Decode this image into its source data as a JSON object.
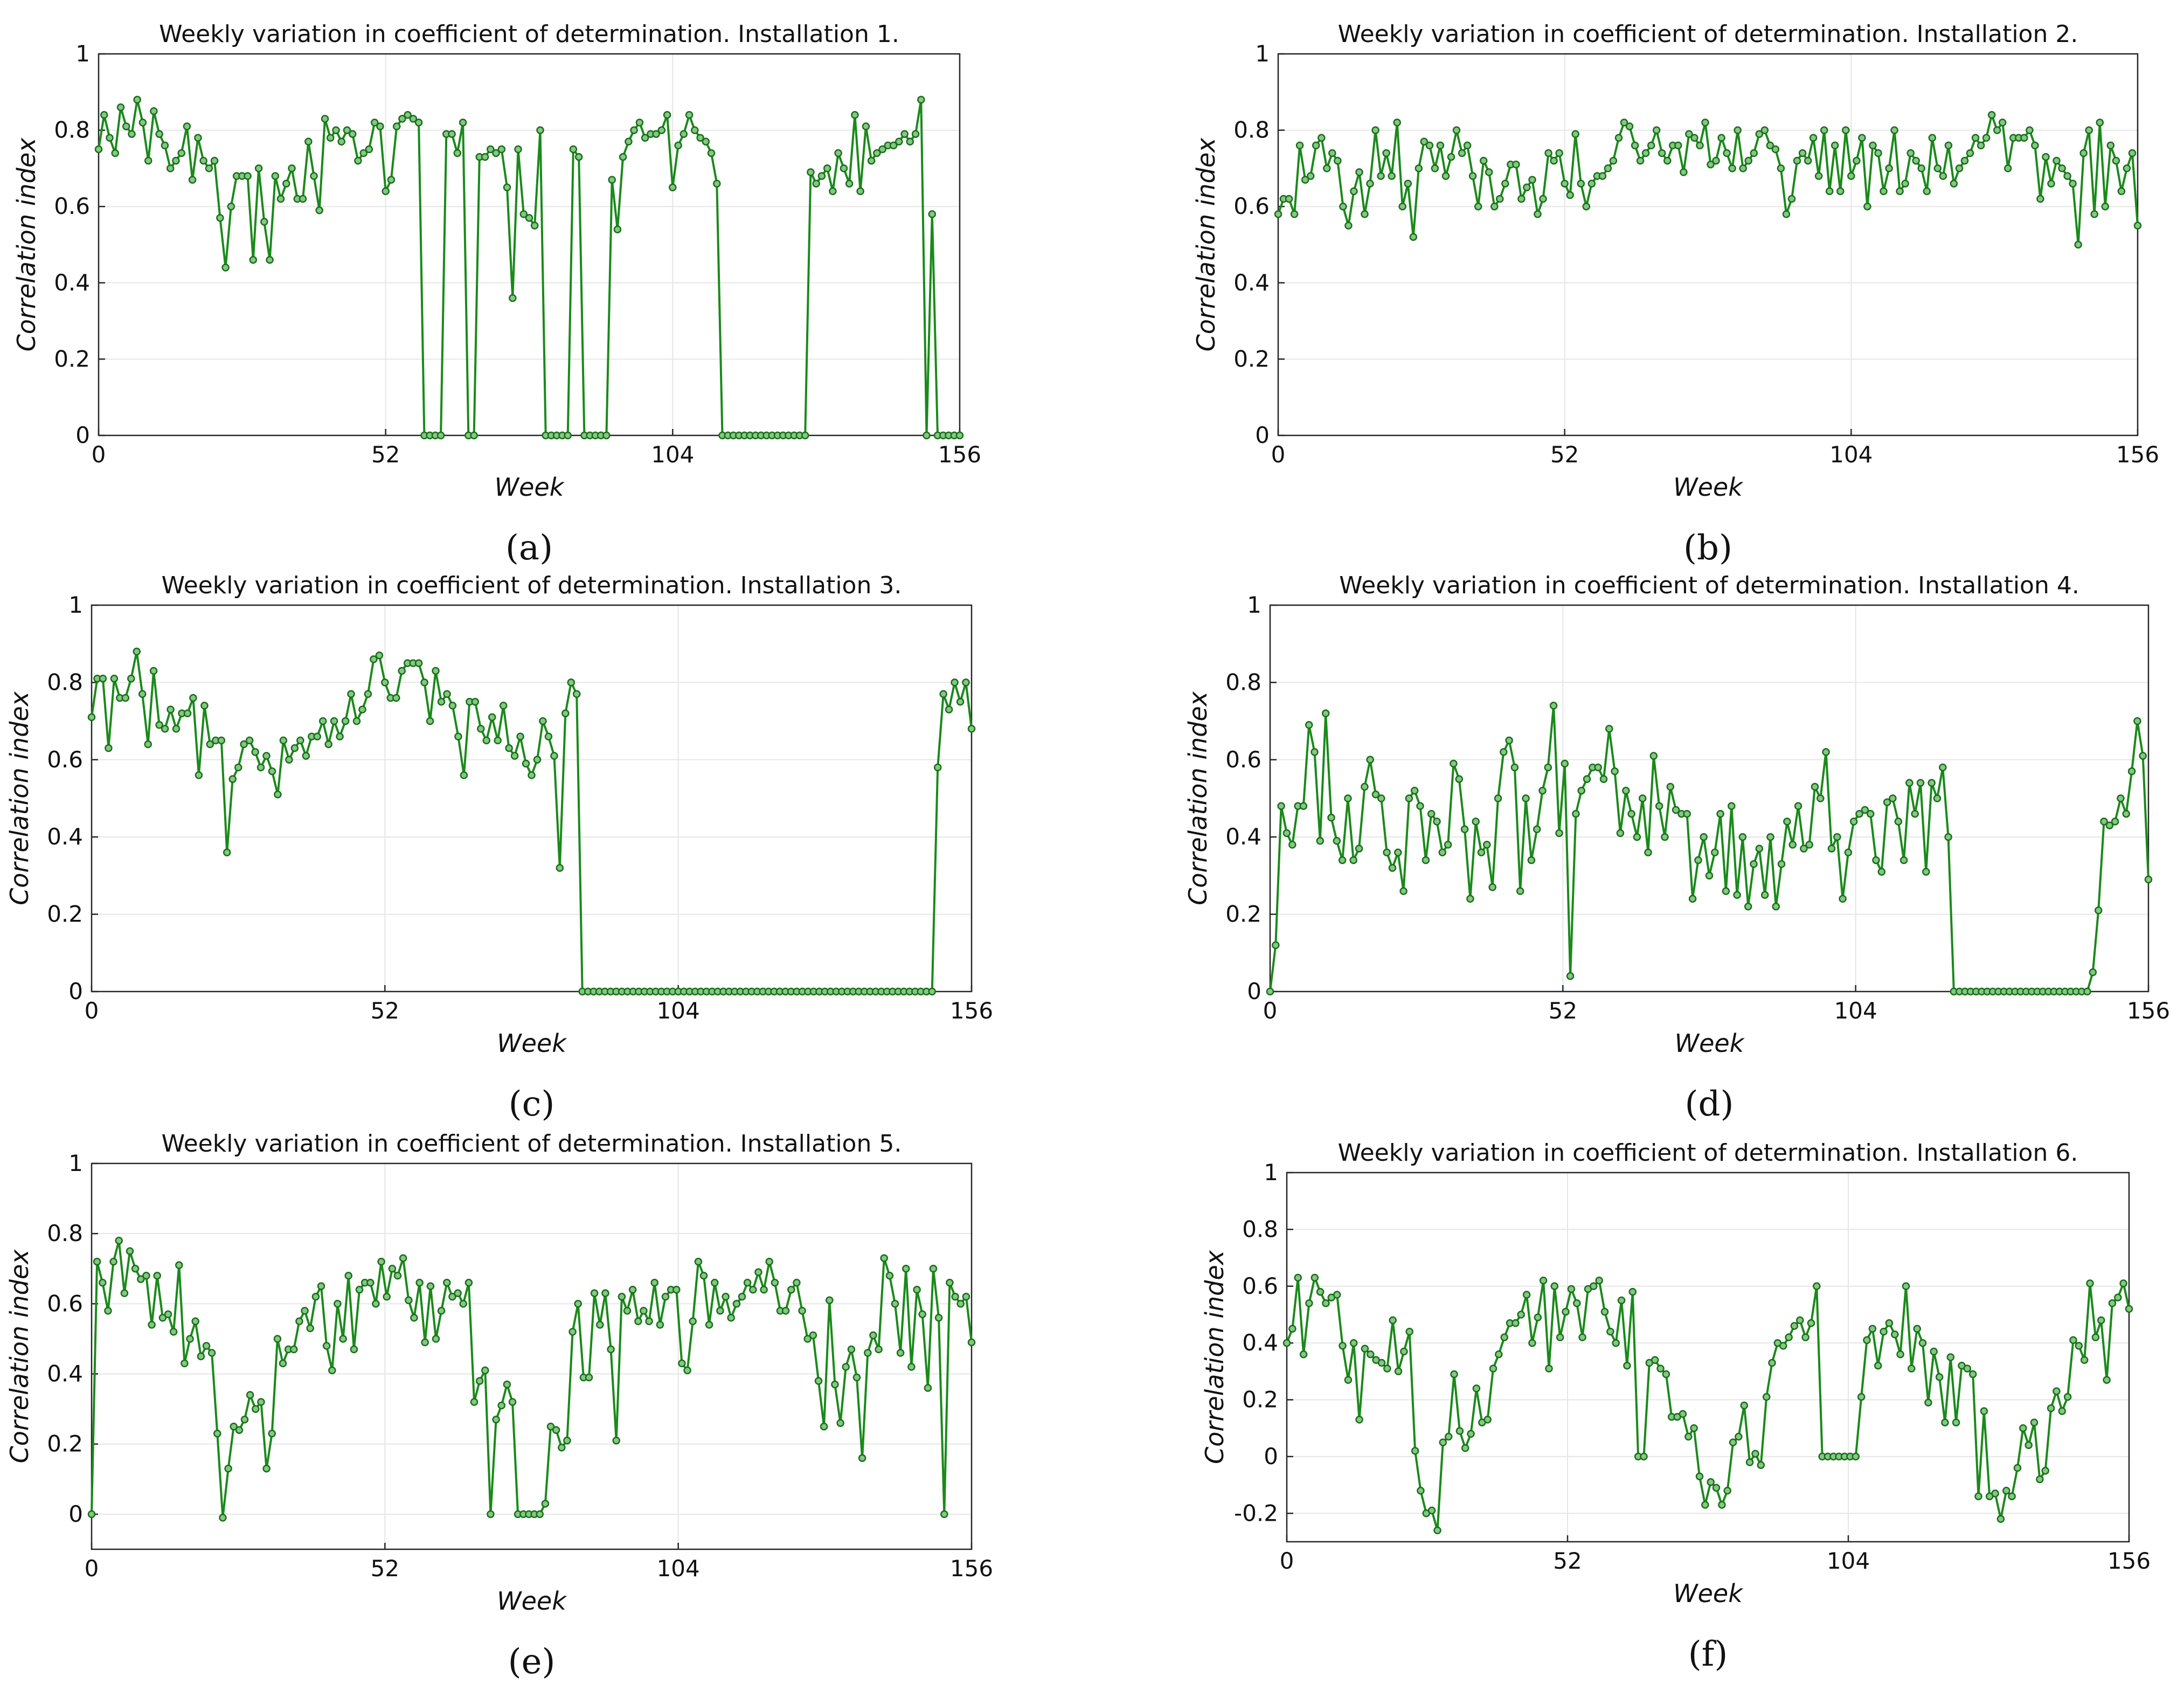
{
  "chart_data": [
    {
      "type": "line",
      "panel_label": "(a)",
      "title": "Weekly variation in coefficient of determination. Installation 1.",
      "xlabel": "Week",
      "ylabel": "Correlation index",
      "xlim": [
        0,
        156
      ],
      "ylim": [
        0,
        1
      ],
      "xticks": [
        "0",
        "52",
        "104",
        "156"
      ],
      "yticks": [
        "0",
        "0.2",
        "0.4",
        "0.6",
        "0.8",
        "1"
      ],
      "y": [
        0.75,
        0.84,
        0.78,
        0.74,
        0.86,
        0.81,
        0.79,
        0.88,
        0.82,
        0.72,
        0.85,
        0.79,
        0.76,
        0.7,
        0.72,
        0.74,
        0.81,
        0.67,
        0.78,
        0.72,
        0.7,
        0.72,
        0.57,
        0.44,
        0.6,
        0.68,
        0.68,
        0.68,
        0.46,
        0.7,
        0.56,
        0.46,
        0.68,
        0.62,
        0.66,
        0.7,
        0.62,
        0.62,
        0.77,
        0.68,
        0.59,
        0.83,
        0.78,
        0.8,
        0.77,
        0.8,
        0.79,
        0.72,
        0.74,
        0.75,
        0.82,
        0.81,
        0.64,
        0.67,
        0.81,
        0.83,
        0.84,
        0.83,
        0.82,
        0.0,
        0.0,
        0.0,
        0.0,
        0.79,
        0.79,
        0.74,
        0.82,
        0.0,
        0.0,
        0.73,
        0.73,
        0.75,
        0.74,
        0.75,
        0.65,
        0.36,
        0.75,
        0.58,
        0.57,
        0.55,
        0.8,
        0.0,
        0.0,
        0.0,
        0.0,
        0.0,
        0.75,
        0.73,
        0.0,
        0.0,
        0.0,
        0.0,
        0.0,
        0.67,
        0.54,
        0.73,
        0.77,
        0.8,
        0.82,
        0.78,
        0.79,
        0.79,
        0.8,
        0.84,
        0.65,
        0.76,
        0.79,
        0.84,
        0.8,
        0.78,
        0.77,
        0.74,
        0.66,
        0.0,
        0.0,
        0.0,
        0.0,
        0.0,
        0.0,
        0.0,
        0.0,
        0.0,
        0.0,
        0.0,
        0.0,
        0.0,
        0.0,
        0.0,
        0.0,
        0.69,
        0.66,
        0.68,
        0.7,
        0.64,
        0.74,
        0.7,
        0.66,
        0.84,
        0.64,
        0.81,
        0.72,
        0.74,
        0.75,
        0.76,
        0.76,
        0.77,
        0.79,
        0.77,
        0.79,
        0.88,
        0.0,
        0.58,
        0.0,
        0.0,
        0.0,
        0.0,
        0.0
      ]
    },
    {
      "type": "line",
      "panel_label": "(b)",
      "title": "Weekly variation in coefficient of determination. Installation 2.",
      "xlabel": "Week",
      "ylabel": "Correlation index",
      "xlim": [
        0,
        156
      ],
      "ylim": [
        0,
        1
      ],
      "xticks": [
        "0",
        "52",
        "104",
        "156"
      ],
      "yticks": [
        "0",
        "0.2",
        "0.4",
        "0.6",
        "0.8",
        "1"
      ],
      "y": [
        0.58,
        0.62,
        0.62,
        0.58,
        0.76,
        0.67,
        0.68,
        0.76,
        0.78,
        0.7,
        0.74,
        0.72,
        0.6,
        0.55,
        0.64,
        0.69,
        0.58,
        0.66,
        0.8,
        0.68,
        0.74,
        0.68,
        0.82,
        0.6,
        0.66,
        0.52,
        0.7,
        0.77,
        0.76,
        0.7,
        0.76,
        0.68,
        0.73,
        0.8,
        0.74,
        0.76,
        0.68,
        0.6,
        0.72,
        0.69,
        0.6,
        0.62,
        0.66,
        0.71,
        0.71,
        0.62,
        0.65,
        0.67,
        0.58,
        0.62,
        0.74,
        0.72,
        0.74,
        0.66,
        0.63,
        0.79,
        0.66,
        0.6,
        0.66,
        0.68,
        0.68,
        0.7,
        0.72,
        0.78,
        0.82,
        0.81,
        0.76,
        0.72,
        0.74,
        0.76,
        0.8,
        0.74,
        0.72,
        0.76,
        0.76,
        0.69,
        0.79,
        0.78,
        0.76,
        0.82,
        0.71,
        0.72,
        0.78,
        0.74,
        0.7,
        0.8,
        0.7,
        0.72,
        0.74,
        0.79,
        0.8,
        0.76,
        0.75,
        0.7,
        0.58,
        0.62,
        0.72,
        0.74,
        0.72,
        0.78,
        0.68,
        0.8,
        0.64,
        0.76,
        0.64,
        0.8,
        0.68,
        0.72,
        0.78,
        0.6,
        0.76,
        0.74,
        0.64,
        0.7,
        0.8,
        0.64,
        0.66,
        0.74,
        0.72,
        0.7,
        0.64,
        0.78,
        0.7,
        0.68,
        0.76,
        0.66,
        0.7,
        0.72,
        0.74,
        0.78,
        0.76,
        0.78,
        0.84,
        0.8,
        0.82,
        0.7,
        0.78,
        0.78,
        0.78,
        0.8,
        0.76,
        0.62,
        0.73,
        0.66,
        0.72,
        0.7,
        0.68,
        0.66,
        0.5,
        0.74,
        0.8,
        0.58,
        0.82,
        0.6,
        0.76,
        0.72,
        0.64,
        0.7,
        0.74,
        0.55
      ]
    },
    {
      "type": "line",
      "panel_label": "(c)",
      "title": "Weekly variation in coefficient of determination. Installation 3.",
      "xlabel": "Week",
      "ylabel": "Correlation index",
      "xlim": [
        0,
        156
      ],
      "ylim": [
        0,
        1
      ],
      "xticks": [
        "0",
        "52",
        "104",
        "156"
      ],
      "yticks": [
        "0",
        "0.2",
        "0.4",
        "0.6",
        "0.8",
        "1"
      ],
      "y": [
        0.71,
        0.81,
        0.81,
        0.63,
        0.81,
        0.76,
        0.76,
        0.81,
        0.88,
        0.77,
        0.64,
        0.83,
        0.69,
        0.68,
        0.73,
        0.68,
        0.72,
        0.72,
        0.76,
        0.56,
        0.74,
        0.64,
        0.65,
        0.65,
        0.36,
        0.55,
        0.58,
        0.64,
        0.65,
        0.62,
        0.58,
        0.61,
        0.57,
        0.51,
        0.65,
        0.6,
        0.63,
        0.65,
        0.61,
        0.66,
        0.66,
        0.7,
        0.64,
        0.7,
        0.66,
        0.7,
        0.77,
        0.7,
        0.73,
        0.77,
        0.86,
        0.87,
        0.8,
        0.76,
        0.76,
        0.83,
        0.85,
        0.85,
        0.85,
        0.8,
        0.7,
        0.83,
        0.75,
        0.77,
        0.74,
        0.66,
        0.56,
        0.75,
        0.75,
        0.68,
        0.65,
        0.71,
        0.65,
        0.74,
        0.63,
        0.61,
        0.66,
        0.59,
        0.56,
        0.6,
        0.7,
        0.66,
        0.61,
        0.32,
        0.72,
        0.8,
        0.77,
        0.0,
        0.0,
        0.0,
        0.0,
        0.0,
        0.0,
        0.0,
        0.0,
        0.0,
        0.0,
        0.0,
        0.0,
        0.0,
        0.0,
        0.0,
        0.0,
        0.0,
        0.0,
        0.0,
        0.0,
        0.0,
        0.0,
        0.0,
        0.0,
        0.0,
        0.0,
        0.0,
        0.0,
        0.0,
        0.0,
        0.0,
        0.0,
        0.0,
        0.0,
        0.0,
        0.0,
        0.0,
        0.0,
        0.0,
        0.0,
        0.0,
        0.0,
        0.0,
        0.0,
        0.0,
        0.0,
        0.0,
        0.0,
        0.0,
        0.0,
        0.0,
        0.0,
        0.0,
        0.0,
        0.0,
        0.0,
        0.0,
        0.0,
        0.0,
        0.0,
        0.0,
        0.0,
        0.0,
        0.58,
        0.77,
        0.73,
        0.8,
        0.75,
        0.8,
        0.68
      ]
    },
    {
      "type": "line",
      "panel_label": "(d)",
      "title": "Weekly variation in coefficient of determination. Installation 4.",
      "xlabel": "Week",
      "ylabel": "Correlation index",
      "xlim": [
        0,
        156
      ],
      "ylim": [
        0,
        1
      ],
      "xticks": [
        "0",
        "52",
        "104",
        "156"
      ],
      "yticks": [
        "0",
        "0.2",
        "0.4",
        "0.6",
        "0.8",
        "1"
      ],
      "y": [
        0.0,
        0.12,
        0.48,
        0.41,
        0.38,
        0.48,
        0.48,
        0.69,
        0.62,
        0.39,
        0.72,
        0.45,
        0.39,
        0.34,
        0.5,
        0.34,
        0.37,
        0.53,
        0.6,
        0.51,
        0.5,
        0.36,
        0.32,
        0.36,
        0.26,
        0.5,
        0.52,
        0.48,
        0.34,
        0.46,
        0.44,
        0.36,
        0.38,
        0.59,
        0.55,
        0.42,
        0.24,
        0.44,
        0.36,
        0.38,
        0.27,
        0.5,
        0.62,
        0.65,
        0.58,
        0.26,
        0.5,
        0.34,
        0.42,
        0.52,
        0.58,
        0.74,
        0.41,
        0.59,
        0.04,
        0.46,
        0.52,
        0.55,
        0.58,
        0.58,
        0.55,
        0.68,
        0.57,
        0.41,
        0.52,
        0.46,
        0.4,
        0.5,
        0.36,
        0.61,
        0.48,
        0.4,
        0.53,
        0.47,
        0.46,
        0.46,
        0.24,
        0.34,
        0.4,
        0.3,
        0.36,
        0.46,
        0.26,
        0.48,
        0.25,
        0.4,
        0.22,
        0.33,
        0.37,
        0.25,
        0.4,
        0.22,
        0.33,
        0.44,
        0.38,
        0.48,
        0.37,
        0.38,
        0.53,
        0.5,
        0.62,
        0.37,
        0.4,
        0.24,
        0.36,
        0.44,
        0.46,
        0.47,
        0.46,
        0.34,
        0.31,
        0.49,
        0.5,
        0.44,
        0.34,
        0.54,
        0.46,
        0.54,
        0.31,
        0.54,
        0.5,
        0.58,
        0.4,
        0.0,
        0.0,
        0.0,
        0.0,
        0.0,
        0.0,
        0.0,
        0.0,
        0.0,
        0.0,
        0.0,
        0.0,
        0.0,
        0.0,
        0.0,
        0.0,
        0.0,
        0.0,
        0.0,
        0.0,
        0.0,
        0.0,
        0.0,
        0.0,
        0.0,
        0.05,
        0.21,
        0.44,
        0.43,
        0.44,
        0.5,
        0.46,
        0.57,
        0.7,
        0.61,
        0.29
      ]
    },
    {
      "type": "line",
      "panel_label": "(e)",
      "title": "Weekly variation in coefficient of determination. Installation 5.",
      "xlabel": "Week",
      "ylabel": "Correlation index",
      "xlim": [
        0,
        156
      ],
      "ylim": [
        -0.1,
        1
      ],
      "xticks": [
        "0",
        "52",
        "104",
        "156"
      ],
      "yticks": [
        "0",
        "0.2",
        "0.4",
        "0.6",
        "0.8",
        "1"
      ],
      "y": [
        0.0,
        0.72,
        0.66,
        0.58,
        0.72,
        0.78,
        0.63,
        0.75,
        0.7,
        0.67,
        0.68,
        0.54,
        0.68,
        0.56,
        0.57,
        0.52,
        0.71,
        0.43,
        0.5,
        0.55,
        0.45,
        0.48,
        0.46,
        0.23,
        -0.01,
        0.13,
        0.25,
        0.24,
        0.27,
        0.34,
        0.3,
        0.32,
        0.13,
        0.23,
        0.5,
        0.43,
        0.47,
        0.47,
        0.55,
        0.58,
        0.53,
        0.62,
        0.65,
        0.48,
        0.41,
        0.6,
        0.5,
        0.68,
        0.47,
        0.64,
        0.66,
        0.66,
        0.6,
        0.72,
        0.62,
        0.7,
        0.68,
        0.73,
        0.61,
        0.56,
        0.66,
        0.49,
        0.65,
        0.5,
        0.58,
        0.66,
        0.62,
        0.63,
        0.6,
        0.66,
        0.32,
        0.38,
        0.41,
        0.0,
        0.27,
        0.31,
        0.37,
        0.32,
        0.0,
        0.0,
        0.0,
        0.0,
        0.0,
        0.03,
        0.25,
        0.24,
        0.19,
        0.21,
        0.52,
        0.6,
        0.39,
        0.39,
        0.63,
        0.54,
        0.63,
        0.47,
        0.21,
        0.62,
        0.58,
        0.64,
        0.55,
        0.58,
        0.55,
        0.66,
        0.54,
        0.62,
        0.64,
        0.64,
        0.43,
        0.41,
        0.55,
        0.72,
        0.68,
        0.54,
        0.66,
        0.58,
        0.62,
        0.56,
        0.6,
        0.62,
        0.66,
        0.64,
        0.69,
        0.64,
        0.72,
        0.66,
        0.58,
        0.58,
        0.64,
        0.66,
        0.58,
        0.5,
        0.51,
        0.38,
        0.25,
        0.61,
        0.37,
        0.26,
        0.42,
        0.47,
        0.39,
        0.16,
        0.46,
        0.51,
        0.47,
        0.73,
        0.68,
        0.6,
        0.46,
        0.7,
        0.42,
        0.64,
        0.57,
        0.36,
        0.7,
        0.56,
        0.0,
        0.66,
        0.62,
        0.6,
        0.62,
        0.49
      ]
    },
    {
      "type": "line",
      "panel_label": "(f)",
      "title": "Weekly variation in coefficient of determination. Installation 6.",
      "xlabel": "Week",
      "ylabel": "Correlation index",
      "xlim": [
        0,
        156
      ],
      "ylim": [
        -0.3,
        1
      ],
      "xticks": [
        "0",
        "52",
        "104",
        "156"
      ],
      "yticks": [
        "-0.2",
        "0",
        "0.2",
        "0.4",
        "0.6",
        "0.8",
        "1"
      ],
      "y": [
        0.4,
        0.45,
        0.63,
        0.36,
        0.54,
        0.63,
        0.58,
        0.54,
        0.56,
        0.57,
        0.39,
        0.27,
        0.4,
        0.13,
        0.38,
        0.36,
        0.34,
        0.33,
        0.31,
        0.48,
        0.3,
        0.37,
        0.44,
        0.02,
        -0.12,
        -0.2,
        -0.19,
        -0.26,
        0.05,
        0.07,
        0.29,
        0.09,
        0.03,
        0.08,
        0.24,
        0.12,
        0.13,
        0.31,
        0.36,
        0.42,
        0.47,
        0.47,
        0.5,
        0.57,
        0.4,
        0.49,
        0.62,
        0.31,
        0.6,
        0.42,
        0.51,
        0.59,
        0.54,
        0.42,
        0.59,
        0.6,
        0.62,
        0.51,
        0.44,
        0.4,
        0.55,
        0.32,
        0.58,
        0.0,
        0.0,
        0.33,
        0.34,
        0.31,
        0.29,
        0.14,
        0.14,
        0.15,
        0.07,
        0.1,
        -0.07,
        -0.17,
        -0.09,
        -0.11,
        -0.17,
        -0.12,
        0.05,
        0.07,
        0.18,
        -0.02,
        0.01,
        -0.03,
        0.21,
        0.33,
        0.4,
        0.39,
        0.42,
        0.46,
        0.48,
        0.42,
        0.47,
        0.6,
        0.0,
        0.0,
        0.0,
        0.0,
        0.0,
        0.0,
        0.0,
        0.21,
        0.41,
        0.45,
        0.32,
        0.44,
        0.47,
        0.43,
        0.36,
        0.6,
        0.31,
        0.45,
        0.4,
        0.19,
        0.37,
        0.28,
        0.12,
        0.35,
        0.12,
        0.32,
        0.31,
        0.29,
        -0.14,
        0.16,
        -0.14,
        -0.13,
        -0.22,
        -0.12,
        -0.14,
        -0.04,
        0.1,
        0.04,
        0.12,
        -0.08,
        -0.05,
        0.17,
        0.23,
        0.16,
        0.21,
        0.41,
        0.39,
        0.34,
        0.61,
        0.42,
        0.48,
        0.27,
        0.54,
        0.56,
        0.61,
        0.52
      ]
    }
  ]
}
